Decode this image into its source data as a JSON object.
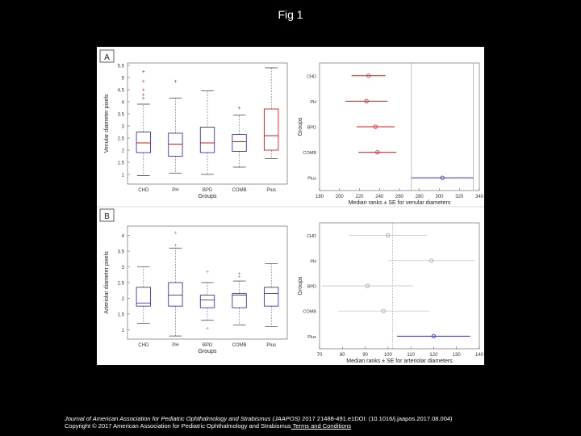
{
  "slide": {
    "title": "Fig 1"
  },
  "caption": {
    "journal": "Journal of American Association for Pediatric Ophthalmology and Strabismus (JAAPOS)",
    "citation": " 2017 21488-491.e1DOI: (10.1016/j.jaapos.2017.08.004)",
    "copyright": "Copyright © 2017 American Association for Pediatric Ophthalmology and Strabismus",
    "link_text": " Terms and Conditions"
  },
  "colors": {
    "red": "#cc2222",
    "blue": "#2a2ad0",
    "box_blue": "#3a3aa8",
    "gray": "#8a8a8a"
  },
  "chart_data": [
    {
      "type": "box",
      "panel": "A",
      "xlabel": "Groups",
      "ylabel": "Venular diameter pixels",
      "ylim": [
        0.6,
        5.6
      ],
      "yticks": [
        1,
        1.5,
        2,
        2.5,
        3,
        3.5,
        4,
        4.5,
        5,
        5.5
      ],
      "categories": [
        "CHD",
        "PH",
        "BPD",
        "COMB",
        "Plus"
      ],
      "boxes": [
        {
          "whisker_low": 0.95,
          "q1": 1.9,
          "median": 2.3,
          "q3": 2.75,
          "whisker_high": 3.9,
          "outliers": [
            4.15,
            4.3,
            4.5,
            4.85,
            5.25
          ]
        },
        {
          "whisker_low": 1.05,
          "q1": 1.75,
          "median": 2.25,
          "q3": 2.7,
          "whisker_high": 4.15,
          "outliers": [
            4.85
          ]
        },
        {
          "whisker_low": 1.0,
          "q1": 1.9,
          "median": 2.3,
          "q3": 2.95,
          "whisker_high": 4.45,
          "outliers": []
        },
        {
          "whisker_low": 1.3,
          "q1": 1.95,
          "median": 2.35,
          "q3": 2.65,
          "whisker_high": 3.45,
          "outliers": [
            3.75
          ]
        },
        {
          "whisker_low": 1.65,
          "q1": 2.0,
          "median": 2.6,
          "q3": 3.7,
          "whisker_high": 5.4,
          "outliers": []
        }
      ]
    },
    {
      "type": "interval",
      "panel": "A",
      "xlabel": "Median ranks ± SE for venular diameters",
      "ylabel": "Groups",
      "xlim": [
        180,
        340
      ],
      "xticks": [
        180,
        200,
        220,
        240,
        260,
        280,
        300,
        320,
        340
      ],
      "categories": [
        "CHD",
        "PH",
        "BPD",
        "COMB",
        "Plus"
      ],
      "centers": [
        229,
        227,
        236,
        238,
        303
      ],
      "half_widths": [
        17,
        21,
        19,
        19,
        31
      ],
      "ref_lines": [
        272,
        334
      ]
    },
    {
      "type": "box",
      "panel": "B",
      "xlabel": "Groups",
      "ylabel": "Arteriolar diameter pixels",
      "ylim": [
        0.7,
        4.3
      ],
      "yticks": [
        1,
        1.5,
        2,
        2.5,
        3,
        3.5,
        4
      ],
      "categories": [
        "CHD",
        "PH",
        "BPD",
        "COMB",
        "Plus"
      ],
      "boxes": [
        {
          "whisker_low": 1.2,
          "q1": 1.75,
          "median": 1.85,
          "q3": 2.35,
          "whisker_high": 3.0,
          "outliers": []
        },
        {
          "whisker_low": 0.8,
          "q1": 1.75,
          "median": 2.1,
          "q3": 2.5,
          "whisker_high": 3.6,
          "outliers": [
            3.7,
            4.1
          ]
        },
        {
          "whisker_low": 1.3,
          "q1": 1.7,
          "median": 1.95,
          "q3": 2.1,
          "whisker_high": 2.5,
          "outliers": [
            1.05,
            2.85
          ]
        },
        {
          "whisker_low": 1.15,
          "q1": 1.7,
          "median": 2.1,
          "q3": 2.15,
          "whisker_high": 2.55,
          "outliers": [
            2.7,
            2.8
          ]
        },
        {
          "whisker_low": 1.1,
          "q1": 1.75,
          "median": 2.15,
          "q3": 2.35,
          "whisker_high": 3.1,
          "outliers": []
        }
      ]
    },
    {
      "type": "interval",
      "panel": "B",
      "xlabel": "Median ranks ± SE for arteriolar diameters",
      "ylabel": "Groups",
      "xlim": [
        70,
        140
      ],
      "xticks": [
        70,
        80,
        90,
        100,
        110,
        120,
        130,
        140
      ],
      "categories": [
        "CHD",
        "PH",
        "BPD",
        "COMB",
        "Plus"
      ],
      "centers": [
        100,
        119,
        91,
        98,
        120
      ],
      "half_widths": [
        17,
        19,
        20,
        20,
        16
      ],
      "ref_lines": [
        102
      ]
    }
  ]
}
